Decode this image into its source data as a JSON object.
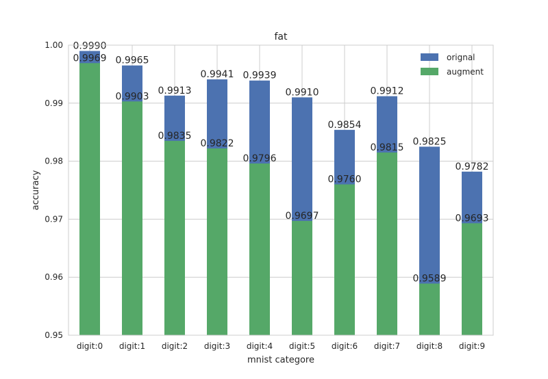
{
  "chart_data": {
    "type": "bar",
    "title": "fat",
    "xlabel": "mnist categore",
    "ylabel": "accuracy",
    "categories": [
      "digit:0",
      "digit:1",
      "digit:2",
      "digit:3",
      "digit:4",
      "digit:5",
      "digit:6",
      "digit:7",
      "digit:8",
      "digit:9"
    ],
    "ylim": [
      0.95,
      1.0
    ],
    "yticks": [
      "0.95",
      "0.96",
      "0.97",
      "0.98",
      "0.99",
      "1.00"
    ],
    "grid": true,
    "legend_position": "top-right",
    "series": [
      {
        "name": "orignal",
        "color": "#4c72b0",
        "values": [
          0.999,
          0.9965,
          0.9913,
          0.9941,
          0.9939,
          0.991,
          0.9854,
          0.9912,
          0.9825,
          0.9782
        ],
        "labels": [
          "0.9990",
          "0.9965",
          "0.9913",
          "0.9941",
          "0.9939",
          "0.9910",
          "0.9854",
          "0.9912",
          "0.9825",
          "0.9782"
        ]
      },
      {
        "name": "augment",
        "color": "#55a868",
        "values": [
          0.9969,
          0.9903,
          0.9835,
          0.9822,
          0.9796,
          0.9697,
          0.976,
          0.9815,
          0.9589,
          0.9693
        ],
        "labels": [
          "0.9969",
          "0.9903",
          "0.9835",
          "0.9822",
          "0.9796",
          "0.9697",
          "0.9760",
          "0.9815",
          "0.9589",
          "0.9693"
        ]
      }
    ]
  }
}
